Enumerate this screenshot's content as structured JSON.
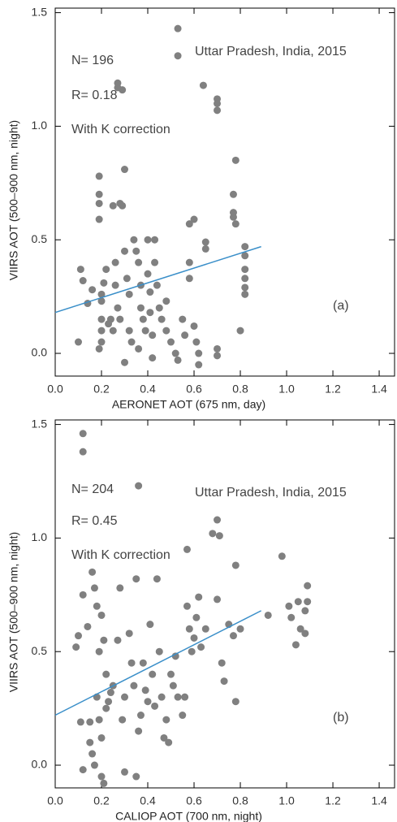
{
  "chart_data": [
    {
      "type": "scatter",
      "xlabel": "AERONET AOT (675 nm, day)",
      "ylabel": "VIIRS AOT (500–900 nm, night)",
      "annotations": [
        "N= 196",
        "R= 0.18",
        "With K correction",
        "Uttar Pradesh, India, 2015",
        "(a)"
      ],
      "xlim": [
        0,
        1.47
      ],
      "ylim": [
        -0.1,
        1.52
      ],
      "xticks": [
        {
          "value": 0,
          "label": "0.0"
        },
        0.2,
        0.4,
        0.6,
        0.8,
        {
          "value": 1,
          "label": "1.0"
        },
        1.2,
        1.4
      ],
      "yticks": [
        {
          "value": 0,
          "label": "0.0"
        },
        0.5,
        {
          "value": 1,
          "label": "1.0"
        },
        1.5
      ],
      "series": [
        {
          "type": "scatter",
          "color": "#808080",
          "x": [
            0.53,
            0.53,
            0.27,
            0.27,
            0.29,
            0.64,
            0.7,
            0.7,
            0.7,
            0.78,
            0.19,
            0.3,
            0.19,
            0.19,
            0.28,
            0.29,
            0.19,
            0.77,
            0.77,
            0.77,
            0.78,
            0.6,
            0.58,
            0.65,
            0.65,
            0.58,
            0.58,
            0.82,
            0.82,
            0.82,
            0.82,
            0.82,
            0.82,
            0.8,
            0.11,
            0.12,
            0.1,
            0.2,
            0.2,
            0.2,
            0.2,
            0.2,
            0.19,
            0.22,
            0.23,
            0.25,
            0.26,
            0.26,
            0.27,
            0.28,
            0.3,
            0.31,
            0.32,
            0.32,
            0.33,
            0.34,
            0.35,
            0.36,
            0.37,
            0.37,
            0.38,
            0.39,
            0.4,
            0.4,
            0.41,
            0.41,
            0.42,
            0.42,
            0.43,
            0.43,
            0.44,
            0.45,
            0.46,
            0.48,
            0.48,
            0.5,
            0.52,
            0.53,
            0.55,
            0.56,
            0.6,
            0.61,
            0.62,
            0.62,
            0.7,
            0.7,
            0.14,
            0.16,
            0.36,
            0.3,
            0.24,
            0.21,
            0.25
          ],
          "y": [
            1.43,
            1.31,
            1.19,
            1.17,
            1.16,
            1.18,
            1.12,
            1.1,
            1.07,
            0.85,
            0.78,
            0.81,
            0.7,
            0.66,
            0.66,
            0.65,
            0.59,
            0.7,
            0.62,
            0.6,
            0.57,
            0.59,
            0.57,
            0.49,
            0.46,
            0.4,
            0.33,
            0.47,
            0.43,
            0.37,
            0.33,
            0.29,
            0.26,
            0.1,
            0.37,
            0.32,
            0.05,
            0.26,
            0.23,
            0.15,
            0.1,
            0.05,
            0.02,
            0.37,
            0.13,
            0.1,
            0.4,
            0.3,
            0.2,
            0.15,
            0.45,
            0.33,
            0.26,
            0.1,
            0.05,
            0.5,
            0.45,
            0.4,
            0.3,
            0.2,
            0.15,
            0.1,
            0.5,
            0.35,
            0.27,
            0.18,
            0.08,
            -0.02,
            0.5,
            0.4,
            0.3,
            0.2,
            0.15,
            0.23,
            0.1,
            0.05,
            0.0,
            -0.03,
            0.15,
            0.08,
            0.12,
            0.05,
            0.0,
            -0.05,
            0.02,
            -0.01,
            0.22,
            0.28,
            0.02,
            -0.04,
            0.15,
            0.31,
            0.65
          ]
        },
        {
          "type": "line",
          "color": "#3a8fc9",
          "x": [
            0,
            0.89
          ],
          "y": [
            0.18,
            0.47
          ]
        }
      ]
    },
    {
      "type": "scatter",
      "xlabel": "CALIOP AOT (700 nm, night)",
      "ylabel": "VIIRS AOT (500–900 nm, night)",
      "annotations": [
        "N= 204",
        "R= 0.45",
        "With K correction",
        "Uttar Pradesh, India, 2015",
        "(b)"
      ],
      "xlim": [
        0,
        1.47
      ],
      "ylim": [
        -0.1,
        1.52
      ],
      "xticks": [
        {
          "value": 0,
          "label": "0.0"
        },
        0.2,
        0.4,
        0.6,
        0.8,
        {
          "value": 1,
          "label": "1.0"
        },
        1.2,
        1.4
      ],
      "yticks": [
        {
          "value": 0,
          "label": "0.0"
        },
        0.5,
        {
          "value": 1,
          "label": "1.0"
        },
        1.5
      ],
      "series": [
        {
          "type": "scatter",
          "color": "#808080",
          "x": [
            0.12,
            0.12,
            0.36,
            0.68,
            0.7,
            0.71,
            0.57,
            0.78,
            0.98,
            1.09,
            0.09,
            0.1,
            0.12,
            0.14,
            0.16,
            0.17,
            0.18,
            0.19,
            0.2,
            0.21,
            0.22,
            0.23,
            0.15,
            0.11,
            0.12,
            0.15,
            0.16,
            0.17,
            0.18,
            0.19,
            0.2,
            0.2,
            0.21,
            0.22,
            0.24,
            0.25,
            0.27,
            0.28,
            0.29,
            0.3,
            0.3,
            0.32,
            0.33,
            0.34,
            0.35,
            0.35,
            0.36,
            0.37,
            0.38,
            0.39,
            0.4,
            0.41,
            0.42,
            0.43,
            0.44,
            0.45,
            0.46,
            0.47,
            0.48,
            0.49,
            0.5,
            0.51,
            0.52,
            0.53,
            0.55,
            0.56,
            0.57,
            0.58,
            0.59,
            0.6,
            0.61,
            0.62,
            0.63,
            0.65,
            0.7,
            0.72,
            0.73,
            0.75,
            0.77,
            0.78,
            0.8,
            0.92,
            1.01,
            1.02,
            1.04,
            1.05,
            1.06,
            1.08,
            1.08,
            1.09
          ],
          "y": [
            1.46,
            1.38,
            1.23,
            1.02,
            1.08,
            1.01,
            0.95,
            0.88,
            0.92,
            0.79,
            0.52,
            0.57,
            0.75,
            0.61,
            0.85,
            0.78,
            0.7,
            0.5,
            0.66,
            0.55,
            0.4,
            0.28,
            0.19,
            0.19,
            -0.02,
            0.1,
            0.05,
            0.0,
            0.3,
            0.2,
            0.12,
            -0.05,
            -0.08,
            0.25,
            0.32,
            0.35,
            0.55,
            0.78,
            0.2,
            0.3,
            -0.03,
            0.58,
            0.45,
            0.35,
            0.82,
            -0.05,
            0.15,
            0.22,
            0.45,
            0.33,
            0.28,
            0.62,
            0.4,
            0.26,
            0.82,
            0.5,
            0.3,
            0.12,
            0.2,
            0.1,
            0.4,
            0.35,
            0.48,
            0.3,
            0.22,
            0.3,
            0.7,
            0.6,
            0.5,
            0.56,
            0.65,
            0.74,
            0.52,
            0.6,
            0.73,
            0.45,
            0.37,
            0.62,
            0.57,
            0.28,
            0.6,
            0.66,
            0.7,
            0.65,
            0.53,
            0.72,
            0.6,
            0.68,
            0.58,
            0.72
          ]
        },
        {
          "type": "line",
          "color": "#3a8fc9",
          "x": [
            0,
            0.89
          ],
          "y": [
            0.22,
            0.68
          ]
        }
      ]
    }
  ]
}
